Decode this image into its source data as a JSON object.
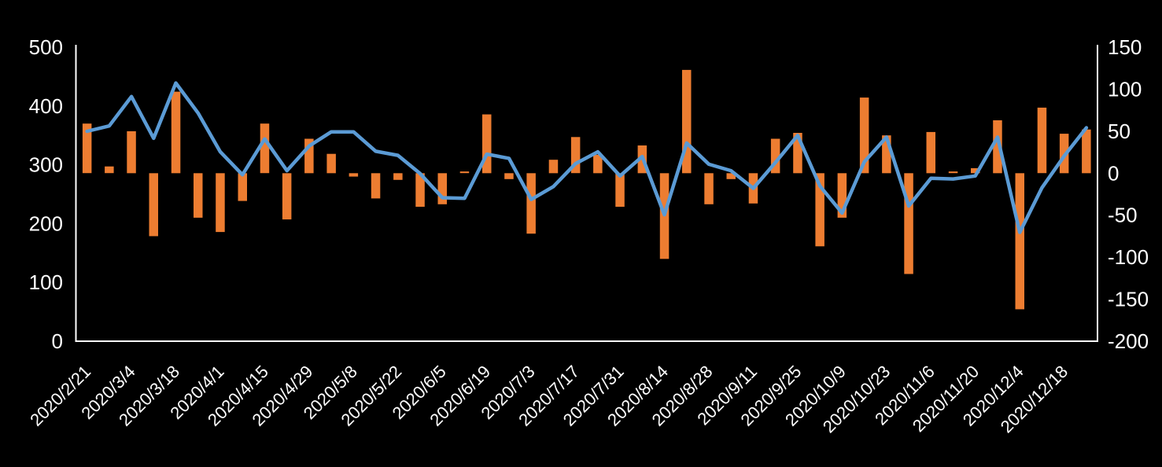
{
  "chart_data": {
    "type": "combo",
    "title": "",
    "background_color": "#000000",
    "text_color": "#FFFFFF",
    "axis_line_color": "#FFFFFF",
    "grid": false,
    "legend": "none",
    "points_count": 46,
    "x_tick_labels": [
      "2020/2/21",
      "2020/3/4",
      "2020/3/18",
      "2020/4/1",
      "2020/4/15",
      "2020/4/29",
      "2020/5/8",
      "2020/5/22",
      "2020/6/5",
      "2020/6/19",
      "2020/7/3",
      "2020/7/17",
      "2020/7/31",
      "2020/8/14",
      "2020/8/28",
      "2020/9/11",
      "2020/9/25",
      "2020/10/9",
      "2020/10/23",
      "2020/11/6",
      "2020/11/20",
      "2020/12/4",
      "2020/12/18"
    ],
    "label_every": 2,
    "left_axis": {
      "min": 0,
      "max": 500,
      "step": 100,
      "tick_labels": [
        "500",
        "400",
        "300",
        "200",
        "100",
        "0"
      ]
    },
    "right_axis": {
      "min": -200,
      "max": 150,
      "step": 50,
      "tick_labels": [
        "150",
        "100",
        "50",
        "0",
        "-50",
        "-100",
        "-150",
        "-200"
      ]
    },
    "series": [
      {
        "name": "weekly-change-bars",
        "type": "bar",
        "axis": "right",
        "color": "#ED7D31",
        "values": [
          59,
          8,
          50,
          -75,
          97,
          -53,
          -70,
          -33,
          59,
          -55,
          41,
          23,
          -4,
          -30,
          -8,
          -40,
          -37,
          2,
          70,
          -7,
          -72,
          16,
          43,
          22,
          -40,
          33,
          -102,
          123,
          -37,
          -7,
          -36,
          41,
          48,
          -87,
          -53,
          90,
          45,
          -120,
          49,
          2,
          6,
          63,
          -162,
          78,
          47,
          52
        ]
      },
      {
        "name": "level-line",
        "type": "line",
        "axis": "left",
        "color": "#5B9BD5",
        "values": [
          357,
          366,
          416,
          345,
          439,
          388,
          322,
          283,
          344,
          290,
          332,
          356,
          356,
          323,
          316,
          285,
          244,
          243,
          318,
          311,
          241,
          263,
          302,
          322,
          281,
          314,
          215,
          337,
          301,
          290,
          260,
          304,
          350,
          264,
          218,
          305,
          347,
          230,
          277,
          276,
          281,
          347,
          185,
          261,
          315,
          363
        ]
      }
    ]
  }
}
